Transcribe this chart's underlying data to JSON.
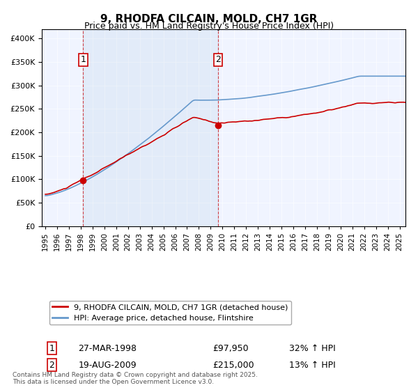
{
  "title": "9, RHODFA CILCAIN, MOLD, CH7 1GR",
  "subtitle": "Price paid vs. HM Land Registry's House Price Index (HPI)",
  "legend_line1": "9, RHODFA CILCAIN, MOLD, CH7 1GR (detached house)",
  "legend_line2": "HPI: Average price, detached house, Flintshire",
  "sale1_date": "27-MAR-1998",
  "sale1_price": 97950,
  "sale1_hpi": "32% ↑ HPI",
  "sale2_date": "19-AUG-2009",
  "sale2_price": 215000,
  "sale2_hpi": "13% ↑ HPI",
  "footnote": "Contains HM Land Registry data © Crown copyright and database right 2025.\nThis data is licensed under the Open Government Licence v3.0.",
  "red_color": "#cc0000",
  "blue_color": "#6699cc",
  "bg_color": "#f0f4ff",
  "sale1_year": 1998.21,
  "sale2_year": 2009.63,
  "ylim": [
    0,
    420000
  ],
  "xlim_start": 1995.0,
  "xlim_end": 2025.5
}
